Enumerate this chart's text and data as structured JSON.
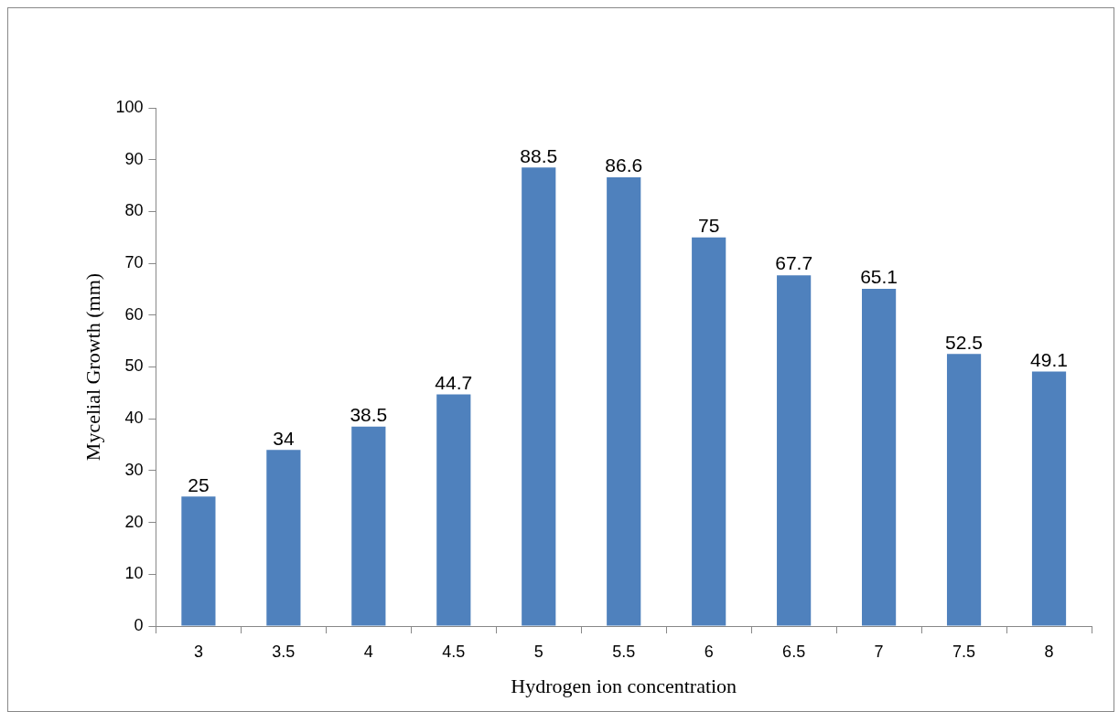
{
  "chart_data": {
    "type": "bar",
    "xlabel": "Hydrogen ion concentration",
    "ylabel": "Mycelial Growth (mm)",
    "categories": [
      "3",
      "3.5",
      "4",
      "4.5",
      "5",
      "5.5",
      "6",
      "6.5",
      "7",
      "7.5",
      "8"
    ],
    "values": [
      25,
      34,
      38.5,
      44.7,
      88.5,
      86.6,
      75,
      67.7,
      65.1,
      52.5,
      49.1
    ],
    "color": "#4f81bd",
    "ylim": [
      0,
      100
    ],
    "yticks": [
      0,
      10,
      20,
      30,
      40,
      50,
      60,
      70,
      80,
      90,
      100
    ],
    "grid": false,
    "legend": false,
    "data_labels": true
  }
}
